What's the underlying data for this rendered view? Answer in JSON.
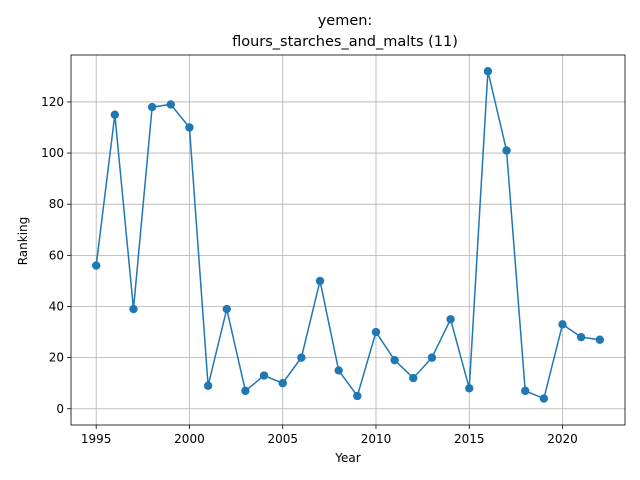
{
  "chart_data": {
    "type": "line",
    "title_line1": "yemen:",
    "title_line2": "flours_starches_and_malts (11)",
    "xlabel": "Year",
    "ylabel": "Ranking",
    "xlim": [
      1993.65,
      2023.35
    ],
    "ylim": [
      -6.35,
      138.35
    ],
    "x_ticks": [
      1995,
      2000,
      2005,
      2010,
      2015,
      2020
    ],
    "y_ticks": [
      0,
      20,
      40,
      60,
      80,
      100,
      120
    ],
    "grid": true,
    "color": "#1f77b4",
    "x": [
      1995,
      1996,
      1997,
      1998,
      1999,
      2000,
      2001,
      2002,
      2003,
      2004,
      2005,
      2006,
      2007,
      2008,
      2009,
      2010,
      2011,
      2012,
      2013,
      2014,
      2015,
      2016,
      2017,
      2018,
      2019,
      2020,
      2021,
      2022
    ],
    "y": [
      56,
      115,
      39,
      118,
      119,
      110,
      9,
      39,
      7,
      13,
      10,
      20,
      50,
      15,
      5,
      30,
      19,
      12,
      20,
      35,
      8,
      132,
      101,
      7,
      4,
      33,
      28,
      27
    ]
  }
}
